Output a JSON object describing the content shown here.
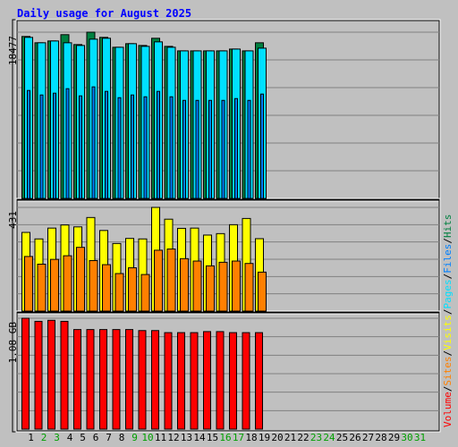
{
  "title": "Daily usage for August 2025",
  "colors": {
    "background": "#c0c0c0",
    "plot_bg": "#c0c0c0",
    "title": "#0000ff",
    "grid": "#808080",
    "hits": "#008040",
    "files": "#0080ff",
    "pages": "#00e0ff",
    "visits": "#ffff00",
    "sites": "#ff8000",
    "volume": "#ff0000",
    "weekend_day": "#00a000",
    "weekday": "#000000"
  },
  "legend": {
    "hits": "Hits",
    "files": "Files",
    "pages": "Pages",
    "visits": "Visits",
    "sites": "Sites",
    "volume": "Volume",
    "sep": "/"
  },
  "chart_data": [
    {
      "type": "bar",
      "panel": "hits-files-pages",
      "max_label": "18477",
      "ylim": [
        0,
        18477
      ],
      "categories": [
        "1",
        "2",
        "3",
        "4",
        "5",
        "6",
        "7",
        "8",
        "9",
        "10",
        "11",
        "12",
        "13",
        "14",
        "15",
        "16",
        "17",
        "18",
        "19",
        "20",
        "21",
        "22",
        "23",
        "24",
        "25",
        "26",
        "27",
        "28",
        "29",
        "30",
        "31"
      ],
      "weekend_days": [
        "2",
        "3",
        "9",
        "10",
        "16",
        "17",
        "23",
        "24",
        "30",
        "31"
      ],
      "series": [
        {
          "name": "Hits",
          "values": [
            18000,
            17300,
            17500,
            18200,
            17100,
            18477,
            17900,
            16800,
            17200,
            17000,
            17800,
            16900,
            16400,
            16400,
            16400,
            16400,
            16600,
            16400,
            17300,
            null,
            null,
            null,
            null,
            null,
            null,
            null,
            null,
            null,
            null,
            null,
            null
          ]
        },
        {
          "name": "Files",
          "values": [
            12000,
            11500,
            11700,
            12200,
            11400,
            12400,
            11900,
            11200,
            11500,
            11300,
            11900,
            11300,
            10900,
            10900,
            10900,
            10900,
            11100,
            10900,
            11600,
            null,
            null,
            null,
            null,
            null,
            null,
            null,
            null,
            null,
            null,
            null,
            null
          ]
        },
        {
          "name": "Pages",
          "values": [
            17900,
            17300,
            17500,
            17300,
            17000,
            17700,
            17800,
            16800,
            17200,
            16900,
            17400,
            16800,
            16400,
            16400,
            16400,
            16400,
            16600,
            16400,
            16700,
            null,
            null,
            null,
            null,
            null,
            null,
            null,
            null,
            null,
            null,
            null,
            null
          ]
        }
      ]
    },
    {
      "type": "bar",
      "panel": "visits-sites",
      "max_label": "431",
      "ylim": [
        0,
        431
      ],
      "series": [
        {
          "name": "Visits",
          "values": [
            327,
            300,
            345,
            358,
            350,
            389,
            335,
            281,
            302,
            300,
            431,
            382,
            344,
            345,
            316,
            322,
            359,
            385,
            301,
            null,
            null,
            null,
            null,
            null,
            null,
            null,
            null,
            null,
            null,
            null,
            null
          ]
        },
        {
          "name": "Sites",
          "values": [
            227,
            195,
            215,
            230,
            265,
            210,
            193,
            156,
            180,
            152,
            253,
            258,
            218,
            208,
            188,
            203,
            208,
            198,
            162,
            null,
            null,
            null,
            null,
            null,
            null,
            null,
            null,
            null,
            null,
            null,
            null
          ]
        }
      ]
    },
    {
      "type": "bar",
      "panel": "volume",
      "max_label": "1.08 GB",
      "ylim": [
        0,
        1.08
      ],
      "series": [
        {
          "name": "Volume",
          "values": [
            1.08,
            1.05,
            1.06,
            1.05,
            0.97,
            0.97,
            0.97,
            0.97,
            0.97,
            0.96,
            0.96,
            0.94,
            0.94,
            0.94,
            0.95,
            0.95,
            0.94,
            0.94,
            0.94,
            null,
            null,
            null,
            null,
            null,
            null,
            null,
            null,
            null,
            null,
            null,
            null
          ]
        }
      ]
    }
  ]
}
